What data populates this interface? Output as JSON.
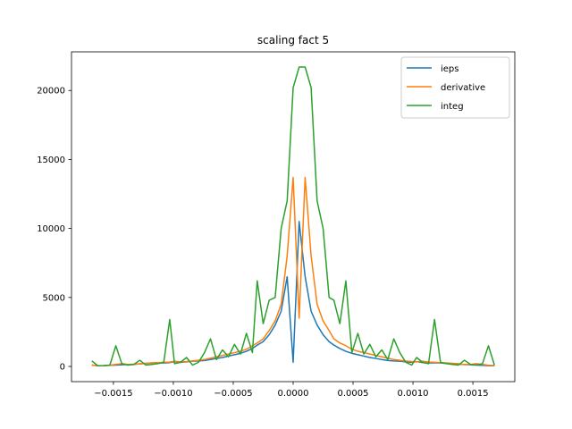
{
  "chart_data": {
    "type": "line",
    "title": "scaling fact 5",
    "xlabel": "",
    "ylabel": "",
    "xlim": [
      -0.00185,
      0.00185
    ],
    "ylim": [
      -1100,
      22800
    ],
    "xticks": [
      -0.0015,
      -0.001,
      -0.0005,
      0.0,
      0.0005,
      0.001,
      0.0015
    ],
    "xtick_labels": [
      "−0.0015",
      "−0.0010",
      "−0.0005",
      "0.0000",
      "0.0005",
      "0.0010",
      "0.0015"
    ],
    "yticks": [
      0,
      5000,
      10000,
      15000,
      20000
    ],
    "ytick_labels": [
      "0",
      "5000",
      "10000",
      "15000",
      "20000"
    ],
    "grid": false,
    "legend_position": "upper right",
    "x": [
      -0.00168,
      -0.00163,
      -0.00158,
      -0.00153,
      -0.00148,
      -0.00143,
      -0.00138,
      -0.00133,
      -0.00128,
      -0.00123,
      -0.00118,
      -0.00113,
      -0.00108,
      -0.00103,
      -0.00099,
      -0.00094,
      -0.00089,
      -0.00084,
      -0.00079,
      -0.00074,
      -0.00069,
      -0.00064,
      -0.00059,
      -0.00054,
      -0.00049,
      -0.00044,
      -0.00039,
      -0.00034,
      -0.0003,
      -0.00025,
      -0.0002,
      -0.00015,
      -0.0001,
      -5e-05,
      0.0,
      5e-05,
      0.0001,
      0.00015,
      0.0002,
      0.00025,
      0.0003,
      0.00034,
      0.00039,
      0.00044,
      0.00049,
      0.00054,
      0.00059,
      0.00064,
      0.00069,
      0.00074,
      0.00079,
      0.00084,
      0.00089,
      0.00094,
      0.00099,
      0.00103,
      0.00108,
      0.00113,
      0.00118,
      0.00123,
      0.00128,
      0.00133,
      0.00138,
      0.00143,
      0.00148,
      0.00153,
      0.00158,
      0.00163,
      0.00168
    ],
    "series": [
      {
        "name": "ieps",
        "color": "#1f77b4",
        "values": [
          100,
          50,
          60,
          80,
          100,
          120,
          140,
          160,
          190,
          220,
          250,
          270,
          250,
          280,
          350,
          300,
          330,
          380,
          400,
          430,
          500,
          580,
          650,
          750,
          850,
          950,
          1100,
          1300,
          1550,
          1800,
          2300,
          3000,
          4000,
          6500,
          300,
          10500,
          6500,
          4000,
          3000,
          2300,
          1800,
          1550,
          1300,
          1100,
          950,
          850,
          750,
          650,
          580,
          500,
          430,
          400,
          380,
          330,
          300,
          350,
          280,
          250,
          270,
          250,
          220,
          190,
          160,
          140,
          120,
          100,
          80,
          60,
          50
        ]
      },
      {
        "name": "derivative",
        "color": "#ff7f0e",
        "values": [
          100,
          60,
          70,
          90,
          150,
          200,
          150,
          130,
          200,
          230,
          260,
          280,
          300,
          320,
          380,
          330,
          360,
          400,
          450,
          500,
          600,
          700,
          800,
          900,
          1000,
          1100,
          1250,
          1500,
          1700,
          2000,
          2600,
          3300,
          4500,
          8000,
          13700,
          3500,
          13700,
          8000,
          4500,
          3300,
          2600,
          2000,
          1700,
          1500,
          1250,
          1100,
          1000,
          900,
          800,
          700,
          600,
          500,
          450,
          400,
          360,
          330,
          380,
          320,
          300,
          280,
          260,
          230,
          200,
          130,
          150,
          200,
          150,
          90,
          70
        ]
      },
      {
        "name": "integ",
        "color": "#2ca02c",
        "values": [
          400,
          50,
          60,
          100,
          1500,
          200,
          100,
          150,
          450,
          100,
          150,
          200,
          300,
          3400,
          200,
          300,
          650,
          100,
          300,
          1000,
          2000,
          500,
          1200,
          700,
          1600,
          900,
          2400,
          1000,
          6200,
          3100,
          4800,
          5000,
          10000,
          12000,
          20200,
          21700,
          21700,
          20200,
          12000,
          10000,
          5000,
          4800,
          3100,
          6200,
          1000,
          2400,
          900,
          1600,
          700,
          1200,
          500,
          2000,
          1000,
          300,
          100,
          650,
          300,
          200,
          3400,
          300,
          200,
          150,
          100,
          450,
          150,
          100,
          200,
          1500,
          100
        ]
      }
    ]
  }
}
